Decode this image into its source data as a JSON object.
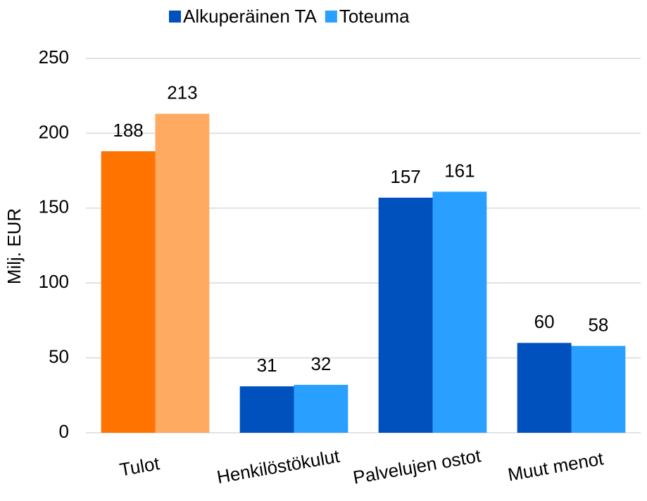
{
  "chart_data": {
    "type": "bar",
    "y_label": "Milj. EUR",
    "categories": [
      "Tulot",
      "Henkilöstökulut",
      "Palvelujen ostot",
      "Muut menot"
    ],
    "series": [
      {
        "name": "Alkuperäinen TA",
        "color": "#0050be",
        "point_colors": [
          "#ff7300",
          "#0050be",
          "#0050be",
          "#0050be"
        ],
        "values": [
          188,
          31,
          157,
          60
        ]
      },
      {
        "name": "Toteuma",
        "color": "#29a0ff",
        "point_colors": [
          "#ffaa60",
          "#29a0ff",
          "#29a0ff",
          "#29a0ff"
        ],
        "values": [
          213,
          32,
          161,
          58
        ]
      }
    ],
    "ylim": [
      0,
      250
    ],
    "yticks": [
      0,
      50,
      100,
      150,
      200,
      250
    ],
    "grid": true,
    "legend": "top"
  }
}
